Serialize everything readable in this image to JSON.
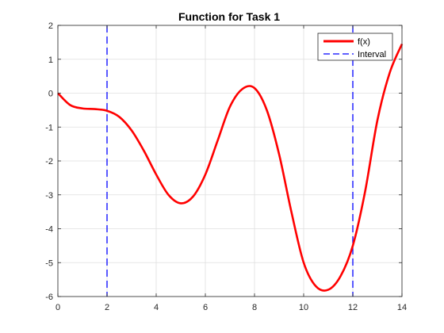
{
  "chart_data": {
    "type": "line",
    "title": "Function for Task 1",
    "xlabel": "",
    "ylabel": "",
    "xlim": [
      0,
      14
    ],
    "ylim": [
      -6,
      2
    ],
    "xticks": [
      0,
      2,
      4,
      6,
      8,
      10,
      12,
      14
    ],
    "yticks": [
      -6,
      -5,
      -4,
      -3,
      -2,
      -1,
      0,
      1,
      2
    ],
    "grid": true,
    "legend_position": "top-right",
    "series": [
      {
        "name": "f(x)",
        "style": "solid",
        "color": "#ff0000",
        "x": [
          0,
          0.5,
          1,
          1.5,
          2,
          2.5,
          3,
          3.5,
          4,
          4.5,
          5,
          5.5,
          6,
          6.5,
          7,
          7.5,
          8,
          8.5,
          9,
          9.5,
          10,
          10.5,
          11,
          11.5,
          12,
          12.5,
          13,
          13.5,
          14
        ],
        "y": [
          0,
          -0.35,
          -0.45,
          -0.47,
          -0.52,
          -0.7,
          -1.1,
          -1.7,
          -2.4,
          -3.0,
          -3.25,
          -3.05,
          -2.4,
          -1.4,
          -0.4,
          0.12,
          0.15,
          -0.5,
          -1.8,
          -3.5,
          -5.0,
          -5.7,
          -5.8,
          -5.4,
          -4.5,
          -2.9,
          -0.8,
          0.6,
          1.45
        ]
      },
      {
        "name": "Interval",
        "style": "dashed",
        "color": "#0000ff",
        "vertical_lines_x": [
          2,
          12
        ]
      }
    ]
  }
}
